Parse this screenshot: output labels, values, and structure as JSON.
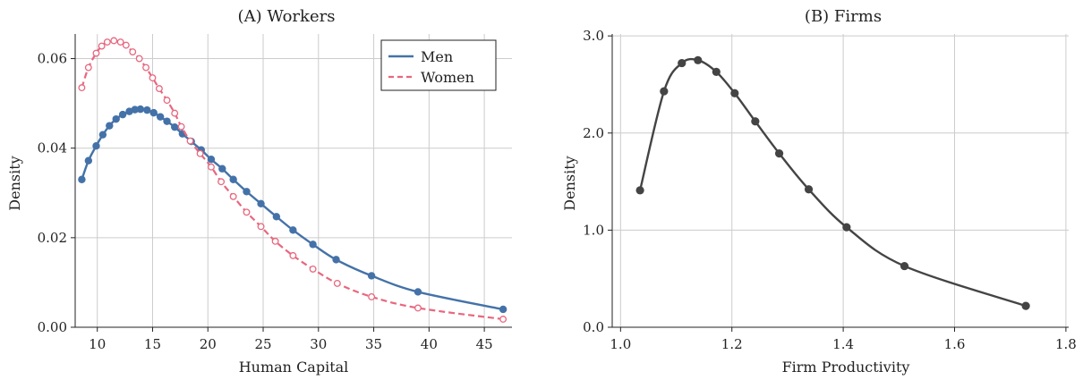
{
  "chart_data": [
    {
      "type": "line",
      "title": "(A) Workers",
      "xlabel": "Human Capital",
      "ylabel": "Density",
      "xlim": [
        8,
        47.5
      ],
      "ylim": [
        0,
        0.0655
      ],
      "xticks": [
        10,
        15,
        20,
        25,
        30,
        35,
        40,
        45
      ],
      "yticks": [
        0.0,
        0.02,
        0.04,
        0.06
      ],
      "ytick_labels": [
        "0.00",
        "0.02",
        "0.04",
        "0.06"
      ],
      "grid": true,
      "legend": "top-right",
      "series": [
        {
          "name": "Men",
          "color": "#4472a8",
          "style": "solid",
          "marker": "filled-circle",
          "x": [
            8.6,
            9.2,
            9.9,
            10.5,
            11.1,
            11.7,
            12.3,
            12.9,
            13.4,
            13.9,
            14.5,
            15.1,
            15.7,
            16.3,
            17.0,
            17.7,
            18.5,
            19.4,
            20.3,
            21.3,
            22.3,
            23.5,
            24.8,
            26.2,
            27.7,
            29.5,
            31.6,
            34.8,
            39.0,
            46.7
          ],
          "y": [
            0.033,
            0.0372,
            0.0405,
            0.043,
            0.045,
            0.0465,
            0.0475,
            0.0482,
            0.0486,
            0.0487,
            0.0485,
            0.0479,
            0.047,
            0.046,
            0.0447,
            0.0432,
            0.0415,
            0.0396,
            0.0375,
            0.0354,
            0.033,
            0.0303,
            0.0276,
            0.0247,
            0.0217,
            0.0185,
            0.0151,
            0.0115,
            0.0079,
            0.004
          ]
        },
        {
          "name": "Women",
          "color": "#e8677e",
          "style": "dashed",
          "marker": "open-circle",
          "x": [
            8.6,
            9.2,
            9.9,
            10.4,
            10.9,
            11.5,
            12.1,
            12.6,
            13.2,
            13.8,
            14.4,
            15.0,
            15.6,
            16.3,
            17.0,
            17.6,
            18.4,
            19.3,
            20.3,
            21.2,
            22.3,
            23.5,
            24.8,
            26.1,
            27.7,
            29.5,
            31.7,
            34.8,
            39.0,
            46.7
          ],
          "y": [
            0.0535,
            0.058,
            0.0612,
            0.0628,
            0.0637,
            0.064,
            0.0637,
            0.063,
            0.0615,
            0.06,
            0.058,
            0.0557,
            0.0533,
            0.0507,
            0.0478,
            0.0448,
            0.0416,
            0.0388,
            0.0358,
            0.0325,
            0.0292,
            0.0257,
            0.0225,
            0.0192,
            0.016,
            0.013,
            0.0098,
            0.0068,
            0.0043,
            0.0018
          ]
        }
      ]
    },
    {
      "type": "line",
      "title": "(B) Firms",
      "xlabel": "Firm Productivity",
      "ylabel": "Density",
      "xlim": [
        0.985,
        1.805
      ],
      "ylim": [
        0,
        3.02
      ],
      "xticks": [
        1.0,
        1.2,
        1.4,
        1.6,
        1.8
      ],
      "xtick_labels": [
        "1.0",
        "1.2",
        "1.4",
        "1.6",
        "1.8"
      ],
      "yticks": [
        0.0,
        1.0,
        2.0,
        3.0
      ],
      "ytick_labels": [
        "0.0",
        "1.0",
        "2.0",
        "3.0"
      ],
      "grid": true,
      "series": [
        {
          "color": "#444444",
          "style": "solid",
          "marker": "filled-circle",
          "x": [
            1.035,
            1.078,
            1.11,
            1.139,
            1.172,
            1.205,
            1.242,
            1.285,
            1.338,
            1.406,
            1.51,
            1.728
          ],
          "y": [
            1.41,
            2.43,
            2.72,
            2.75,
            2.63,
            2.41,
            2.12,
            1.79,
            1.42,
            1.03,
            0.63,
            0.22
          ]
        }
      ]
    }
  ]
}
